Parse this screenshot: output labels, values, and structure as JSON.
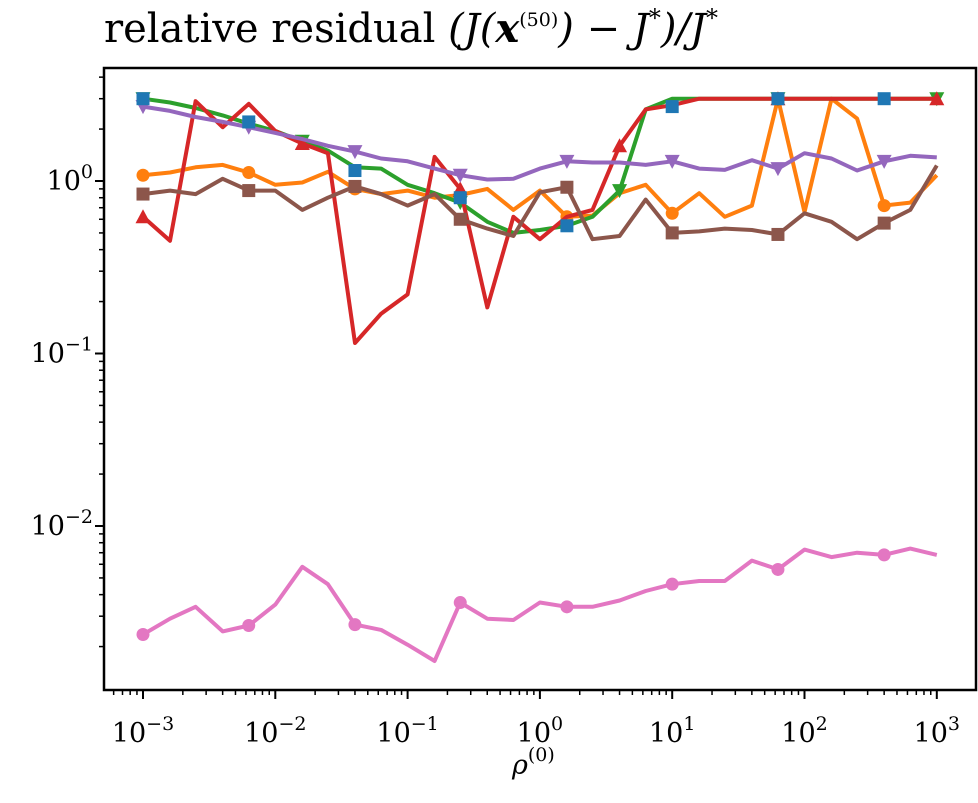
{
  "chart_data": {
    "type": "line",
    "title": {
      "prefix": "relative residual ",
      "formula_open": "(J(",
      "bold_x": "x",
      "exponent": "(50)",
      "formula_mid": ") − J",
      "star": "*",
      "formula_end": ")/J",
      "star2": "*"
    },
    "xlabel": {
      "base": "ρ",
      "exponent": "(0)"
    },
    "ylabel": "",
    "xscale": "log",
    "yscale": "log",
    "xlim": [
      0.0006,
      1500
    ],
    "ylim": [
      0.0012,
      4.2
    ],
    "xticks": [
      {
        "base": "10",
        "exp": "−3",
        "value": 0.001
      },
      {
        "base": "10",
        "exp": "−2",
        "value": 0.01
      },
      {
        "base": "10",
        "exp": "−1",
        "value": 0.1
      },
      {
        "base": "10",
        "exp": "0",
        "value": 1
      },
      {
        "base": "10",
        "exp": "1",
        "value": 10
      },
      {
        "base": "10",
        "exp": "2",
        "value": 100
      },
      {
        "base": "10",
        "exp": "3",
        "value": 1000
      }
    ],
    "yticks": [
      {
        "base": "10",
        "exp": "0",
        "value": 1
      },
      {
        "base": "10",
        "exp": "−1",
        "value": 0.1
      },
      {
        "base": "10",
        "exp": "−2",
        "value": 0.01
      }
    ],
    "grid": false,
    "legend": "none",
    "series": [
      {
        "name": "blue",
        "color": "#1f77b4",
        "marker": "square",
        "x": [
          0.001,
          0.0063,
          0.04,
          0.25,
          1.6,
          10,
          63,
          400
        ],
        "y": [
          3.0,
          2.2,
          1.15,
          0.8,
          0.55,
          2.7,
          3.0,
          3.0
        ]
      },
      {
        "name": "orange",
        "color": "#ff7f0e",
        "marker": "circle",
        "marker_every": 4,
        "x": [
          0.001,
          0.0016,
          0.0025,
          0.004,
          0.0063,
          0.01,
          0.016,
          0.025,
          0.04,
          0.063,
          0.1,
          0.16,
          0.25,
          0.4,
          0.63,
          1,
          1.6,
          2.5,
          4,
          6.3,
          10,
          16,
          25,
          40,
          63,
          100,
          160,
          250,
          400,
          630,
          1000
        ],
        "y": [
          1.08,
          1.12,
          1.2,
          1.24,
          1.12,
          0.95,
          0.98,
          1.13,
          0.9,
          0.84,
          0.88,
          0.8,
          0.83,
          0.9,
          0.68,
          0.88,
          0.62,
          0.63,
          0.85,
          0.95,
          0.65,
          0.85,
          0.62,
          0.72,
          3.0,
          0.66,
          3.0,
          2.3,
          0.72,
          0.75,
          1.08
        ]
      },
      {
        "name": "green",
        "color": "#2ca02c",
        "marker": "triangle-down",
        "marker_every": 6,
        "x": [
          0.001,
          0.0016,
          0.0025,
          0.004,
          0.0063,
          0.01,
          0.016,
          0.025,
          0.04,
          0.063,
          0.1,
          0.16,
          0.25,
          0.4,
          0.63,
          1,
          1.6,
          2.5,
          4,
          6.3,
          10,
          16,
          25,
          40,
          63,
          100,
          160,
          250,
          400,
          630,
          1000
        ],
        "y": [
          3.0,
          2.85,
          2.65,
          2.4,
          2.15,
          1.95,
          1.7,
          1.5,
          1.2,
          1.18,
          0.95,
          0.85,
          0.75,
          0.58,
          0.5,
          0.52,
          0.55,
          0.62,
          0.88,
          2.6,
          3.0,
          3.0,
          3.0,
          3.0,
          3.0,
          3.0,
          3.0,
          3.0,
          3.0,
          3.0,
          3.0
        ]
      },
      {
        "name": "red",
        "color": "#d62728",
        "marker": "triangle-up",
        "marker_every": 6,
        "x": [
          0.001,
          0.0016,
          0.0025,
          0.004,
          0.0063,
          0.01,
          0.016,
          0.025,
          0.04,
          0.063,
          0.1,
          0.16,
          0.25,
          0.4,
          0.63,
          1,
          1.6,
          2.5,
          4,
          6.3,
          10,
          16,
          25,
          40,
          63,
          100,
          160,
          250,
          400,
          630,
          1000
        ],
        "y": [
          0.62,
          0.45,
          2.9,
          2.05,
          2.8,
          1.95,
          1.65,
          1.45,
          0.115,
          0.17,
          0.22,
          1.38,
          0.9,
          0.185,
          0.62,
          0.46,
          0.62,
          0.68,
          1.6,
          2.6,
          2.75,
          3.0,
          3.0,
          3.0,
          3.0,
          3.0,
          3.0,
          3.0,
          3.0,
          3.0,
          3.0
        ]
      },
      {
        "name": "purple",
        "color": "#9467bd",
        "marker": "triangle-down",
        "marker_every": 4,
        "x": [
          0.001,
          0.0016,
          0.0025,
          0.004,
          0.0063,
          0.01,
          0.016,
          0.025,
          0.04,
          0.063,
          0.1,
          0.16,
          0.25,
          0.4,
          0.63,
          1,
          1.6,
          2.5,
          4,
          6.3,
          10,
          16,
          25,
          40,
          63,
          100,
          160,
          250,
          400,
          630,
          1000
        ],
        "y": [
          2.7,
          2.55,
          2.35,
          2.2,
          2.05,
          1.9,
          1.75,
          1.6,
          1.48,
          1.35,
          1.3,
          1.18,
          1.08,
          1.02,
          1.03,
          1.18,
          1.3,
          1.28,
          1.28,
          1.24,
          1.3,
          1.18,
          1.16,
          1.32,
          1.18,
          1.45,
          1.35,
          1.15,
          1.3,
          1.4,
          1.37
        ]
      },
      {
        "name": "brown",
        "color": "#8c564b",
        "marker": "square",
        "marker_every": 4,
        "x": [
          0.001,
          0.0016,
          0.0025,
          0.004,
          0.0063,
          0.01,
          0.016,
          0.025,
          0.04,
          0.063,
          0.1,
          0.16,
          0.25,
          0.4,
          0.63,
          1,
          1.6,
          2.5,
          4,
          6.3,
          10,
          16,
          25,
          40,
          63,
          100,
          160,
          250,
          400,
          630,
          1000
        ],
        "y": [
          0.84,
          0.88,
          0.84,
          1.03,
          0.88,
          0.88,
          0.68,
          0.8,
          0.93,
          0.84,
          0.72,
          0.84,
          0.6,
          0.53,
          0.48,
          0.86,
          0.92,
          0.46,
          0.48,
          0.78,
          0.5,
          0.51,
          0.53,
          0.52,
          0.49,
          0.65,
          0.58,
          0.46,
          0.57,
          0.68,
          1.23
        ]
      },
      {
        "name": "pink",
        "color": "#e377c2",
        "marker": "circle",
        "marker_every": 4,
        "x": [
          0.001,
          0.0016,
          0.0025,
          0.004,
          0.0063,
          0.01,
          0.016,
          0.025,
          0.04,
          0.063,
          0.1,
          0.16,
          0.25,
          0.4,
          0.63,
          1,
          1.6,
          2.5,
          4,
          6.3,
          10,
          16,
          25,
          40,
          63,
          100,
          160,
          250,
          400,
          630,
          1000
        ],
        "y": [
          0.00235,
          0.0029,
          0.0034,
          0.00245,
          0.00265,
          0.0035,
          0.0058,
          0.0046,
          0.00268,
          0.0025,
          0.00205,
          0.00165,
          0.0036,
          0.0029,
          0.00285,
          0.0036,
          0.0034,
          0.0034,
          0.0037,
          0.0042,
          0.0046,
          0.0048,
          0.0048,
          0.0063,
          0.0056,
          0.0073,
          0.0066,
          0.007,
          0.0068,
          0.0074,
          0.0068
        ]
      }
    ]
  }
}
